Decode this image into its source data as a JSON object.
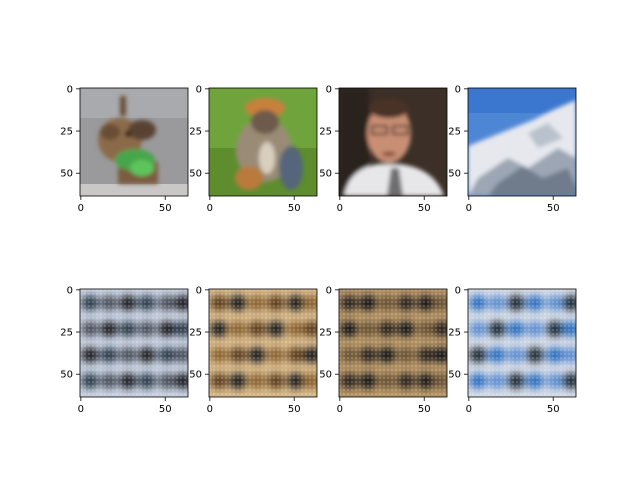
{
  "chart_data": {
    "type": "image_grid",
    "rows": 2,
    "cols": 4,
    "extent": [
      0,
      64
    ],
    "axes": [
      {
        "row": 0,
        "col": 0,
        "content": "photo: dog with green bandana",
        "xticks": [
          "0",
          "50"
        ],
        "yticks": [
          "0",
          "25",
          "50"
        ]
      },
      {
        "row": 0,
        "col": 1,
        "content": "photo: monkey on green background",
        "xticks": [
          "0",
          "50"
        ],
        "yticks": [
          "0",
          "25",
          "50"
        ]
      },
      {
        "row": 0,
        "col": 2,
        "content": "photo: man with glasses",
        "xticks": [
          "0",
          "50"
        ],
        "yticks": [
          "0",
          "25",
          "50"
        ]
      },
      {
        "row": 0,
        "col": 3,
        "content": "photo: snowy mountain and blue sky",
        "xticks": [
          "0",
          "50"
        ],
        "yticks": [
          "0",
          "25",
          "50"
        ]
      },
      {
        "row": 1,
        "col": 0,
        "content": "blurry dark blobs on light blue-grey",
        "xticks": [
          "0",
          "50"
        ],
        "yticks": [
          "0",
          "25",
          "50"
        ]
      },
      {
        "row": 1,
        "col": 1,
        "content": "blurry dark blobs on golden tan",
        "xticks": [
          "0",
          "50"
        ],
        "yticks": [
          "0",
          "25",
          "50"
        ]
      },
      {
        "row": 1,
        "col": 2,
        "content": "blurry dark blobs on brown",
        "xticks": [
          "0",
          "50"
        ],
        "yticks": [
          "0",
          "25",
          "50"
        ]
      },
      {
        "row": 1,
        "col": 3,
        "content": "blurry blue and dark blobs on light background",
        "xticks": [
          "0",
          "50"
        ],
        "yticks": [
          "0",
          "25",
          "50"
        ]
      }
    ]
  }
}
